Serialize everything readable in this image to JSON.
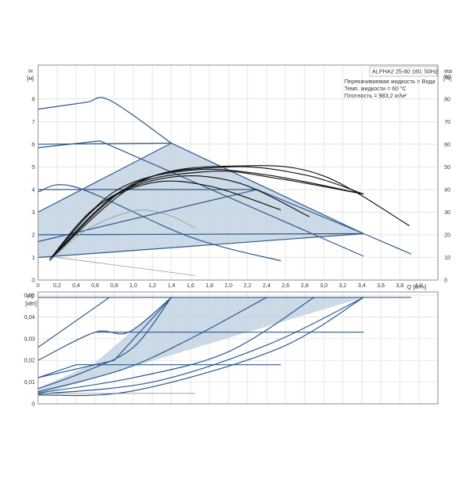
{
  "colors": {
    "pump": "#2c5a8e",
    "fill": "#c3d2e2",
    "eff": "#111111",
    "grid": "#d6d6d6",
    "thin": "#8a8a8a"
  },
  "info": {
    "title": "ALPHA2 25-80 180, 50Hz",
    "line1": "Перекачиваемая жидкость = Вода",
    "line2": "Темп. жидкости = 60 °C",
    "line3": "Плотность = 983,2 кг/м³"
  },
  "chart_data": [
    {
      "id": "head",
      "type": "line",
      "xlabel": "Q [м³/ч]",
      "ylabel": [
        "H",
        "[м]"
      ],
      "y2label": [
        "eta",
        "[%]"
      ],
      "xlim": [
        0,
        4.2
      ],
      "ylim": [
        0,
        9.5
      ],
      "y2lim": [
        0,
        95
      ],
      "grid": true,
      "x_ticks": [
        {
          "v": 0,
          "label": "0"
        },
        {
          "v": 0.2,
          "label": "0,2"
        },
        {
          "v": 0.4,
          "label": "0,4"
        },
        {
          "v": 0.6,
          "label": "0,6"
        },
        {
          "v": 0.8,
          "label": "0,8"
        },
        {
          "v": 1.0,
          "label": "1,0"
        },
        {
          "v": 1.2,
          "label": "1,2"
        },
        {
          "v": 1.4,
          "label": "1,4"
        },
        {
          "v": 1.6,
          "label": "1,6"
        },
        {
          "v": 1.8,
          "label": "1,8"
        },
        {
          "v": 2.0,
          "label": "2,0"
        },
        {
          "v": 2.2,
          "label": "2,2"
        },
        {
          "v": 2.4,
          "label": "2,4"
        },
        {
          "v": 2.6,
          "label": "2,6"
        },
        {
          "v": 2.8,
          "label": "2,8"
        },
        {
          "v": 3.0,
          "label": "3,0"
        },
        {
          "v": 3.2,
          "label": "3,2"
        },
        {
          "v": 3.4,
          "label": "3,4"
        },
        {
          "v": 3.6,
          "label": "3,6"
        },
        {
          "v": 3.8,
          "label": "3,8"
        },
        {
          "v": 4.0,
          "label": "4,0"
        }
      ],
      "y_ticks": [
        {
          "v": 0,
          "label": "0"
        },
        {
          "v": 1,
          "label": "1"
        },
        {
          "v": 2,
          "label": "2"
        },
        {
          "v": 3,
          "label": "3"
        },
        {
          "v": 4,
          "label": "4"
        },
        {
          "v": 5,
          "label": "5"
        },
        {
          "v": 6,
          "label": "6"
        },
        {
          "v": 7,
          "label": "7"
        },
        {
          "v": 8,
          "label": "8"
        }
      ],
      "y2_ticks": [
        {
          "v": 0,
          "label": "0"
        },
        {
          "v": 10,
          "label": "10"
        },
        {
          "v": 20,
          "label": "20"
        },
        {
          "v": 30,
          "label": "30"
        },
        {
          "v": 40,
          "label": "40"
        },
        {
          "v": 50,
          "label": "50"
        },
        {
          "v": 60,
          "label": "60"
        },
        {
          "v": 70,
          "label": "70"
        },
        {
          "v": 80,
          "label": "80"
        },
        {
          "v": 90,
          "label": "90"
        }
      ],
      "areas": [
        {
          "name": "",
          "points": [
            [
              0,
              1.0
            ],
            [
              0,
              3.0
            ],
            [
              1.4,
              6.05
            ],
            [
              3.42,
              2.05
            ],
            [
              0,
              1.0
            ]
          ]
        }
      ],
      "series": [
        {
          "name": "",
          "style": "pump",
          "points": [
            [
              0,
              7.55
            ],
            [
              0.5,
              7.85
            ],
            [
              0.75,
              7.95
            ],
            [
              1.4,
              6.05
            ]
          ]
        },
        {
          "name": "",
          "style": "pump",
          "points": [
            [
              0,
              6.0
            ],
            [
              1.4,
              6.05
            ]
          ]
        },
        {
          "name": "",
          "style": "pump",
          "points": [
            [
              0,
              1.0
            ],
            [
              3.42,
              2.05
            ],
            [
              3.92,
              1.15
            ]
          ]
        },
        {
          "name": "",
          "style": "pump",
          "points": [
            [
              0,
              3.0
            ],
            [
              1.4,
              6.05
            ],
            [
              3.42,
              2.05
            ]
          ]
        },
        {
          "name": "",
          "style": "pump",
          "points": [
            [
              0,
              3.9
            ],
            [
              0.4,
              4.1
            ],
            [
              1.6,
              1.9
            ],
            [
              2.55,
              0.85
            ]
          ]
        },
        {
          "name": "",
          "style": "pump",
          "points": [
            [
              0,
              5.85
            ],
            [
              0.65,
              6.15
            ],
            [
              3.42,
              1.05
            ]
          ]
        },
        {
          "name": "",
          "style": "pump",
          "points": [
            [
              0,
              2.0
            ],
            [
              3.42,
              2.05
            ]
          ]
        },
        {
          "name": "",
          "style": "pump",
          "points": [
            [
              0,
              4.0
            ],
            [
              2.3,
              4.0
            ],
            [
              3.42,
              2.05
            ]
          ]
        },
        {
          "name": "",
          "style": "pump",
          "points": [
            [
              0,
              1.7
            ],
            [
              2.3,
              4.0
            ]
          ]
        },
        {
          "name": "",
          "style": "thin",
          "points": [
            [
              0.2,
              1.0
            ],
            [
              1.65,
              0.2
            ]
          ]
        },
        {
          "name": "",
          "style": "thin",
          "points": [
            [
              0.12,
              0.8
            ],
            [
              0.5,
              2.2
            ],
            [
              1.0,
              3.05
            ],
            [
              1.35,
              2.9
            ],
            [
              1.65,
              2.3
            ]
          ]
        },
        {
          "name": "",
          "style": "eff",
          "points": [
            [
              0.12,
              0.9
            ],
            [
              0.6,
              3.2
            ],
            [
              1.2,
              4.3
            ],
            [
              1.8,
              4.15
            ],
            [
              2.55,
              3.1
            ]
          ]
        },
        {
          "name": "",
          "style": "eff",
          "points": [
            [
              0.12,
              0.9
            ],
            [
              0.7,
              3.5
            ],
            [
              1.4,
              4.55
            ],
            [
              2.1,
              4.3
            ],
            [
              2.85,
              2.8
            ]
          ]
        },
        {
          "name": "",
          "style": "eff",
          "points": [
            [
              0.12,
              0.9
            ],
            [
              0.8,
              3.9
            ],
            [
              1.6,
              4.85
            ],
            [
              2.4,
              4.65
            ],
            [
              3.42,
              3.8
            ]
          ]
        },
        {
          "name": "",
          "style": "eff",
          "points": [
            [
              0.12,
              0.9
            ],
            [
              1.0,
              4.25
            ],
            [
              2.0,
              5.0
            ],
            [
              2.8,
              4.65
            ],
            [
              3.42,
              3.8
            ]
          ]
        },
        {
          "name": "",
          "style": "eff",
          "points": [
            [
              0.12,
              0.9
            ],
            [
              1.1,
              4.4
            ],
            [
              2.2,
              5.05
            ],
            [
              3.0,
              4.6
            ],
            [
              3.9,
              2.4
            ]
          ]
        },
        {
          "name": "",
          "style": "eff",
          "points": [
            [
              0.12,
              0.9
            ],
            [
              0.9,
              4.0
            ],
            [
              1.8,
              4.8
            ],
            [
              2.5,
              4.5
            ],
            [
              3.42,
              3.8
            ]
          ]
        }
      ]
    },
    {
      "id": "power",
      "type": "line",
      "xlabel": "",
      "ylabel": [
        "P1",
        "[кВт]"
      ],
      "xlim": [
        0,
        4.2
      ],
      "ylim": [
        0,
        0.0515
      ],
      "grid": true,
      "y_ticks": [
        {
          "v": 0,
          "label": "0"
        },
        {
          "v": 0.01,
          "label": "0,01"
        },
        {
          "v": 0.02,
          "label": "0,02"
        },
        {
          "v": 0.03,
          "label": "0,03"
        },
        {
          "v": 0.04,
          "label": "0,04"
        },
        {
          "v": 0.05,
          "label": "0,05"
        }
      ],
      "areas": [
        {
          "name": "",
          "points": [
            [
              0,
              0.007
            ],
            [
              0.6,
              0.019
            ],
            [
              1.4,
              0.049
            ],
            [
              3.42,
              0.049
            ],
            [
              0,
              0.004
            ]
          ]
        }
      ],
      "series": [
        {
          "name": "",
          "style": "pump",
          "points": [
            [
              0,
              0.049
            ],
            [
              3.92,
              0.049
            ]
          ]
        },
        {
          "name": "",
          "style": "pump",
          "points": [
            [
              0,
              0.026
            ],
            [
              0.75,
              0.049
            ]
          ]
        },
        {
          "name": "",
          "style": "pump",
          "points": [
            [
              0,
              0.02
            ],
            [
              0.6,
              0.033
            ],
            [
              0.95,
              0.033
            ],
            [
              1.4,
              0.049
            ]
          ]
        },
        {
          "name": "",
          "style": "pump",
          "points": [
            [
              0.6,
              0.033
            ],
            [
              3.42,
              0.033
            ]
          ]
        },
        {
          "name": "",
          "style": "pump",
          "points": [
            [
              0,
              0.012
            ],
            [
              0.8,
              0.02
            ],
            [
              1.4,
              0.049
            ]
          ]
        },
        {
          "name": "",
          "style": "pump",
          "points": [
            [
              0,
              0.007
            ],
            [
              0.5,
              0.015
            ],
            [
              1.0,
              0.026
            ],
            [
              1.4,
              0.049
            ]
          ]
        },
        {
          "name": "",
          "style": "pump",
          "points": [
            [
              0,
              0.0055
            ],
            [
              0.9,
              0.016
            ],
            [
              1.6,
              0.03
            ],
            [
              2.4,
              0.049
            ]
          ]
        },
        {
          "name": "",
          "style": "pump",
          "points": [
            [
              0,
              0.005
            ],
            [
              1.0,
              0.012
            ],
            [
              2.0,
              0.024
            ],
            [
              2.9,
              0.049
            ]
          ]
        },
        {
          "name": "",
          "style": "pump",
          "points": [
            [
              0,
              0.0045
            ],
            [
              1.2,
              0.01
            ],
            [
              2.4,
              0.027
            ],
            [
              3.42,
              0.049
            ]
          ]
        },
        {
          "name": "",
          "style": "pump",
          "points": [
            [
              0,
              0.004
            ],
            [
              1.0,
              0.006
            ],
            [
              2.5,
              0.025
            ],
            [
              3.42,
              0.049
            ]
          ]
        },
        {
          "name": "",
          "style": "pump",
          "points": [
            [
              0,
              0.012
            ],
            [
              0.4,
              0.018
            ],
            [
              2.55,
              0.018
            ]
          ]
        },
        {
          "name": "",
          "style": "thin",
          "points": [
            [
              0,
              0.0048
            ],
            [
              1.65,
              0.0048
            ]
          ]
        }
      ]
    }
  ]
}
